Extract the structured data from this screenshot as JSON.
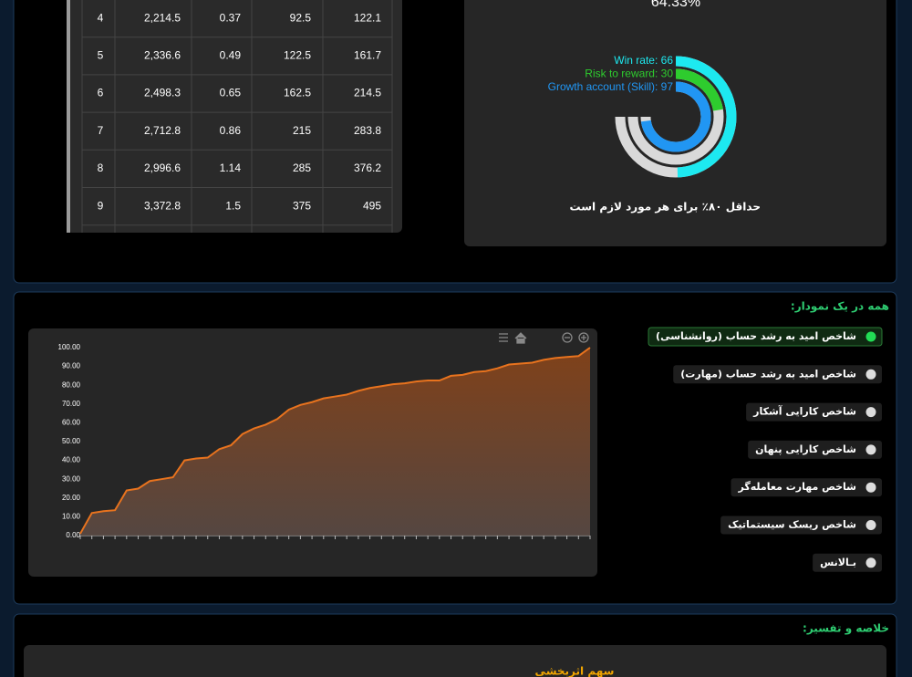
{
  "table": {
    "rows": [
      [
        "4",
        "2,214.5",
        "0.37",
        "92.5",
        "122.1"
      ],
      [
        "5",
        "2,336.6",
        "0.49",
        "122.5",
        "161.7"
      ],
      [
        "6",
        "2,498.3",
        "0.65",
        "162.5",
        "214.5"
      ],
      [
        "7",
        "2,712.8",
        "0.86",
        "215",
        "283.8"
      ],
      [
        "8",
        "2,996.6",
        "1.14",
        "285",
        "376.2"
      ],
      [
        "9",
        "3,372.8",
        "1.5",
        "375",
        "495"
      ]
    ]
  },
  "score_card": {
    "percent": "64.33%",
    "caption": "حداقل ۸۰٪ برای هر مورد لازم است"
  },
  "chart_data": [
    {
      "type": "radial_bar",
      "ylim": [
        0,
        100
      ],
      "track_color": "#d9d9d9",
      "series": [
        {
          "name": "Win rate: 66",
          "color": "#1de9f0",
          "values": [
            66
          ]
        },
        {
          "name": "Risk to reward: 30",
          "color": "#2ecc2e",
          "values": [
            30
          ]
        },
        {
          "name": "Growth account (Skill): 97",
          "color": "#2196f3",
          "values": [
            97
          ]
        }
      ]
    },
    {
      "type": "area",
      "color": "#e8731e",
      "ylim": [
        0,
        100
      ],
      "yticks": [
        {
          "value": 0,
          "label": "0.00"
        },
        {
          "value": 10,
          "label": "10.00"
        },
        {
          "value": 20,
          "label": "20.00"
        },
        {
          "value": 30,
          "label": "30.00"
        },
        {
          "value": 40,
          "label": "40.00"
        },
        {
          "value": 50,
          "label": "50.00"
        },
        {
          "value": 60,
          "label": "60.00"
        },
        {
          "value": 70,
          "label": "70.00"
        },
        {
          "value": 80,
          "label": "80.00"
        },
        {
          "value": 90,
          "label": "90.00"
        },
        {
          "value": 100,
          "label": "100.00"
        }
      ],
      "values": [
        1,
        12,
        13,
        13.5,
        24,
        25,
        29,
        30,
        31,
        40,
        41,
        41.5,
        46,
        48,
        54,
        57,
        59,
        62,
        67,
        69.5,
        71,
        73,
        74,
        75,
        77,
        78.5,
        79.5,
        80.5,
        81,
        82,
        82.5,
        82.5,
        85,
        85.5,
        87,
        87.5,
        89,
        91,
        91.5,
        92,
        93.5,
        94.5,
        95,
        95.5,
        100
      ]
    }
  ],
  "combined": {
    "title": "همه در یک نمودار:",
    "toggles": [
      {
        "label": "شاخص امید به رشد حساب (روانشناسی)",
        "active": true
      },
      {
        "label": "شاخص امید به رشد حساب (مهارت)",
        "active": false
      },
      {
        "label": "شاخص کارایی آشکار",
        "active": false
      },
      {
        "label": "شاخص کارایی پنهان",
        "active": false
      },
      {
        "label": "شاخص مهارت معامله‌گر",
        "active": false
      },
      {
        "label": "شاخص ریسک سیستماتیک",
        "active": false
      },
      {
        "label": "بـالانس",
        "active": false
      }
    ]
  },
  "summary": {
    "title": "خلاصه و تفسیر:",
    "subtitle": "سهم اثربخشی"
  }
}
